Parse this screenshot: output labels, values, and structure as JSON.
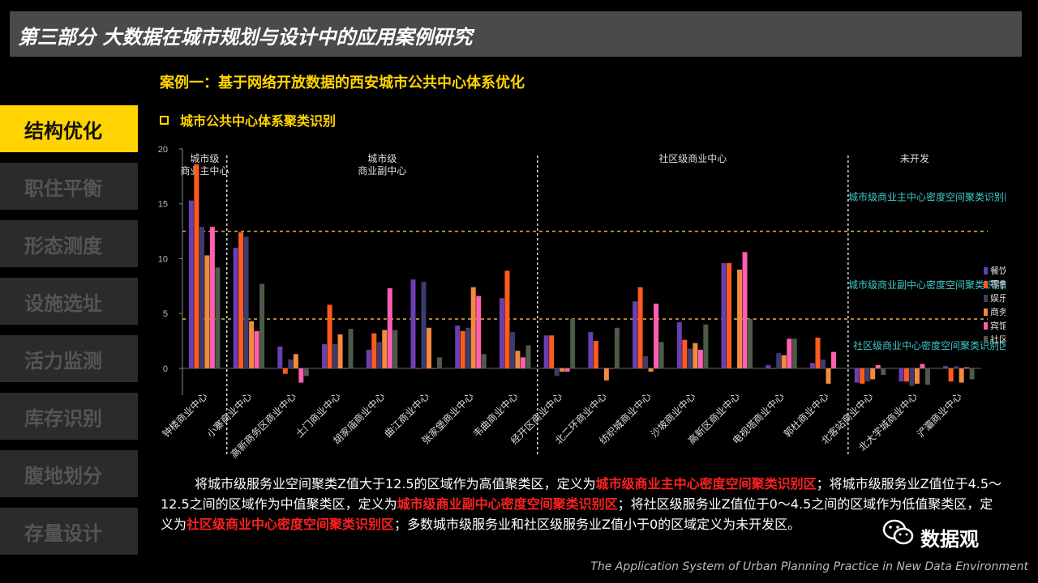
{
  "header": {
    "title": "第三部分  大数据在城市规划与设计中的应用案例研究"
  },
  "sidebar": {
    "items": [
      {
        "label": "结构优化",
        "active": true
      },
      {
        "label": "职住平衡",
        "active": false
      },
      {
        "label": "形态测度",
        "active": false
      },
      {
        "label": "设施选址",
        "active": false
      },
      {
        "label": "活力监测",
        "active": false
      },
      {
        "label": "库存识别",
        "active": false
      },
      {
        "label": "腹地划分",
        "active": false
      },
      {
        "label": "存量设计",
        "active": false
      }
    ]
  },
  "case_title": "案例一：基于网络开放数据的西安城市公共中心体系优化",
  "sub_title": "城市公共中心体系聚类识别",
  "chart_data": {
    "type": "bar",
    "ylim": [
      -2,
      20
    ],
    "yticks": [
      0,
      5,
      10,
      15,
      20
    ],
    "grid": false,
    "legend_position": "right",
    "categories": [
      "钟楼商业中心",
      "小寨商业中心",
      "高新商务区商业中心",
      "土门商业中心",
      "胡家庙商业中心",
      "曲江商业中心",
      "张家堡商业中心",
      "韦曲商业中心",
      "经开区商业中心",
      "北二环商业中心",
      "纺织城商业中心",
      "沙坡商业中心",
      "高新区商业中心",
      "电视塔商业中心",
      "郭杜商业中心",
      "北客站商业中心",
      "北大学城商业中心",
      "浐灞商业中心"
    ],
    "series": [
      {
        "name": "餐饮业",
        "color": "#6a3fb0",
        "values": [
          15.3,
          11.0,
          2.0,
          2.2,
          1.7,
          8.1,
          3.9,
          6.4,
          3.0,
          3.3,
          6.1,
          4.2,
          9.6,
          0.3,
          0.5,
          -1.3,
          -1.2,
          0.2
        ]
      },
      {
        "name": "零售业",
        "color": "#ff5a1f",
        "values": [
          18.6,
          12.4,
          -0.5,
          5.8,
          3.2,
          0.0,
          3.4,
          8.9,
          3.0,
          2.5,
          7.4,
          2.6,
          9.6,
          0.0,
          2.8,
          -1.4,
          -1.2,
          -1.2
        ]
      },
      {
        "name": "娱乐业",
        "color": "#3c3c70",
        "values": [
          12.9,
          12.0,
          0.8,
          2.2,
          2.4,
          7.9,
          3.7,
          3.3,
          -0.7,
          0.0,
          1.1,
          1.8,
          0.0,
          1.4,
          0.8,
          -1.2,
          -1.6,
          0.2
        ]
      },
      {
        "name": "商务业",
        "color": "#f28a40",
        "values": [
          10.3,
          4.3,
          1.3,
          3.1,
          3.5,
          3.7,
          7.4,
          1.6,
          -0.3,
          -1.1,
          -0.3,
          2.3,
          9.0,
          1.2,
          -1.4,
          -1.0,
          -1.4,
          -1.3
        ]
      },
      {
        "name": "宾馆业",
        "color": "#ff5fb0",
        "values": [
          12.9,
          3.4,
          -1.3,
          0.0,
          7.3,
          0.0,
          6.6,
          1.0,
          -0.3,
          0.0,
          5.9,
          1.7,
          10.6,
          2.7,
          1.5,
          0.3,
          0.4,
          0.1
        ]
      },
      {
        "name": "社区业",
        "color": "#4d5a48",
        "values": [
          9.2,
          7.7,
          -0.7,
          3.6,
          3.5,
          1.0,
          1.3,
          2.1,
          4.5,
          3.7,
          2.4,
          4.0,
          4.5,
          2.7,
          0.0,
          -0.6,
          -1.5,
          -1.0
        ]
      }
    ],
    "zones": [
      {
        "label": "城市级\n商业主中心",
        "from": 0,
        "to": 1
      },
      {
        "label": "城市级\n商业副中心",
        "from": 1,
        "to": 8
      },
      {
        "label": "社区级商业中心",
        "from": 8,
        "to": 15
      },
      {
        "label": "未开发",
        "from": 15,
        "to": 18
      }
    ],
    "thresholds": [
      {
        "value": 12.5,
        "label": "城市级商业主中心密度空间聚类识别区"
      },
      {
        "value": 4.5,
        "label": "城市级商业副中心密度空间聚类识别区"
      },
      {
        "value": 0,
        "label": "社区级商业中心密度空间聚类识别区"
      }
    ]
  },
  "paragraph": {
    "p1": "将城市级服务业空间聚类Z值大于12.5的区域作为高值聚类区，定义为",
    "h1": "城市级商业主中心密度空间聚类识别区",
    "p2": "；将城市级服务业Z值位于4.5～12.5之间的区域作为中值聚类区，定义为",
    "h2": "城市级商业副中心密度空间聚类识别区",
    "p3": "；将社区级服务业Z值位于0～4.5之间的区域作为低值聚类区，定义为",
    "h3": "社区级商业中心密度空间聚类识别区",
    "p4": "；多数城市级服务业和社区级服务业Z值小于0的区域定义为未开发区。"
  },
  "footer": "The Application System of Urban Planning Practice in New Data Environment",
  "watermark": "数据观",
  "colors": {
    "accent": "#ffd400",
    "highlight": "#ff2020",
    "threshold_line": "#e8b050",
    "threshold_text": "#3fc7c7"
  }
}
